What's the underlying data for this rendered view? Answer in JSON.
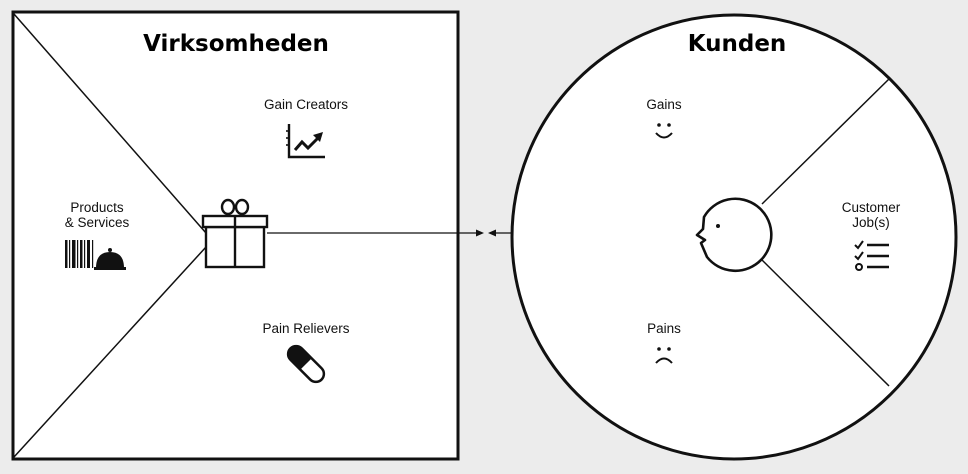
{
  "company": {
    "title": "Virksomheden",
    "gain_creators": "Gain Creators",
    "products_line1": "Products",
    "products_line2": "& Services",
    "pain_relievers": "Pain Relievers"
  },
  "customer": {
    "title": "Kunden",
    "gains": "Gains",
    "jobs_line1": "Customer",
    "jobs_line2": "Job(s)",
    "pains": "Pains"
  },
  "icons": {
    "gain_creators": "chart-up-icon",
    "products": "barcode-cloche-icon",
    "pain_relievers": "pill-icon",
    "center_square": "gift-icon",
    "gains": "smile-icon",
    "jobs": "checklist-icon",
    "pains": "frown-icon",
    "center_circle": "face-profile-icon"
  },
  "colors": {
    "background": "#ececec",
    "canvas": "#ffffff",
    "ink": "#111111"
  }
}
